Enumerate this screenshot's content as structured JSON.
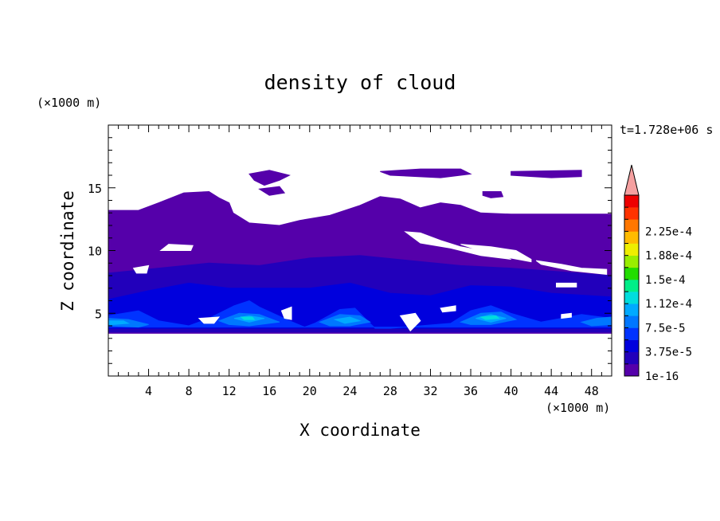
{
  "chart_data": {
    "type": "heatmap",
    "title": "density of cloud",
    "xlabel": "X coordinate",
    "ylabel": "Z coordinate",
    "x_unit": "(×1000 m)",
    "y_unit": "(×1000 m)",
    "time_label": "t=1.728e+06 s",
    "xlim": [
      0,
      50
    ],
    "ylim": [
      0,
      20
    ],
    "x_major_ticks": [
      4,
      8,
      12,
      16,
      20,
      24,
      28,
      32,
      36,
      40,
      44,
      48
    ],
    "y_major_ticks": [
      5,
      10,
      15
    ],
    "colorbar": {
      "labels": [
        "1e-16",
        "3.75e-5",
        "7.5e-5",
        "1.12e-4",
        "1.5e-4",
        "1.88e-4",
        "2.25e-4"
      ],
      "levels": [
        1e-16,
        1.875e-05,
        3.75e-05,
        5.625e-05,
        7.5e-05,
        9.375e-05,
        0.0001125,
        0.00013125,
        0.00015,
        0.00016875,
        0.0001875,
        0.00020625,
        0.000225,
        0.00024375
      ],
      "colors": [
        "#5500aa",
        "#2200bb",
        "#0000dd",
        "#0033ff",
        "#0077ff",
        "#00aaff",
        "#00dddd",
        "#00ee88",
        "#22dd00",
        "#99ee00",
        "#eeee00",
        "#ffbb00",
        "#ff7700",
        "#ff3300",
        "#ee0000"
      ],
      "overflow_color": "#f5a0a0"
    },
    "regions": [
      {
        "level": 0,
        "polygon": [
          [
            0,
            13.2
          ],
          [
            3,
            13.2
          ],
          [
            5,
            13.8
          ],
          [
            7.5,
            14.6
          ],
          [
            10,
            14.7
          ],
          [
            11,
            14.2
          ],
          [
            12,
            13.8
          ],
          [
            12.4,
            13.0
          ],
          [
            14,
            12.2
          ],
          [
            17,
            12.0
          ],
          [
            19,
            12.4
          ],
          [
            22,
            12.8
          ],
          [
            25,
            13.6
          ],
          [
            27,
            14.3
          ],
          [
            29,
            14.1
          ],
          [
            31,
            13.4
          ],
          [
            33,
            13.8
          ],
          [
            35,
            13.6
          ],
          [
            37,
            13.0
          ],
          [
            40,
            12.9
          ],
          [
            45,
            12.9
          ],
          [
            50,
            12.9
          ],
          [
            50,
            3.4
          ],
          [
            0,
            3.4
          ]
        ]
      },
      {
        "level": 0,
        "polygon": [
          [
            14,
            16.1
          ],
          [
            16,
            16.4
          ],
          [
            18,
            16.0
          ],
          [
            17,
            15.6
          ],
          [
            15.5,
            15.2
          ],
          [
            14.5,
            15.6
          ]
        ]
      },
      {
        "level": 0,
        "polygon": [
          [
            15,
            14.9
          ],
          [
            17,
            15.1
          ],
          [
            17.5,
            14.6
          ],
          [
            16,
            14.4
          ]
        ]
      },
      {
        "level": 0,
        "polygon": [
          [
            27,
            16.3
          ],
          [
            31,
            16.5
          ],
          [
            35,
            16.5
          ],
          [
            36,
            16.1
          ],
          [
            33,
            15.8
          ],
          [
            28,
            16.0
          ]
        ]
      },
      {
        "level": 0,
        "polygon": [
          [
            40,
            16.3
          ],
          [
            47,
            16.4
          ],
          [
            47,
            15.9
          ],
          [
            44,
            15.8
          ],
          [
            40,
            16.0
          ]
        ]
      },
      {
        "level": 0,
        "polygon": [
          [
            37.2,
            14.7
          ],
          [
            39.0,
            14.7
          ],
          [
            39.2,
            14.3
          ],
          [
            38,
            14.2
          ],
          [
            37.2,
            14.4
          ]
        ]
      },
      {
        "level": 1,
        "polygon": [
          [
            0,
            8.2
          ],
          [
            5,
            8.6
          ],
          [
            10,
            9.0
          ],
          [
            15,
            8.8
          ],
          [
            20,
            9.4
          ],
          [
            25,
            9.6
          ],
          [
            30,
            9.2
          ],
          [
            35,
            8.8
          ],
          [
            40,
            8.6
          ],
          [
            45,
            8.3
          ],
          [
            50,
            8.0
          ],
          [
            50,
            3.5
          ],
          [
            0,
            3.5
          ]
        ]
      },
      {
        "level": 2,
        "polygon": [
          [
            0,
            6.1
          ],
          [
            4,
            6.8
          ],
          [
            8,
            7.4
          ],
          [
            12,
            7.0
          ],
          [
            16,
            7.0
          ],
          [
            20,
            7.0
          ],
          [
            24,
            7.4
          ],
          [
            28,
            6.6
          ],
          [
            32,
            6.4
          ],
          [
            36,
            7.2
          ],
          [
            40,
            7.1
          ],
          [
            44,
            6.6
          ],
          [
            50,
            6.3
          ],
          [
            50,
            3.8
          ],
          [
            0,
            3.8
          ]
        ]
      },
      {
        "level": 3,
        "polygon": [
          [
            0,
            4.8
          ],
          [
            3,
            5.2
          ],
          [
            5,
            4.4
          ],
          [
            8,
            4.0
          ],
          [
            10,
            4.6
          ],
          [
            12.5,
            5.6
          ],
          [
            14,
            6.0
          ],
          [
            15,
            5.5
          ],
          [
            18,
            4.4
          ],
          [
            19.5,
            3.9
          ],
          [
            20.5,
            4.2
          ],
          [
            23,
            5.3
          ],
          [
            24.5,
            5.4
          ],
          [
            26,
            4.2
          ],
          [
            26.5,
            3.8
          ],
          [
            28,
            3.8
          ],
          [
            34,
            4.2
          ],
          [
            36,
            5.2
          ],
          [
            38,
            5.6
          ],
          [
            40,
            5.0
          ],
          [
            43,
            4.3
          ],
          [
            45,
            4.6
          ],
          [
            47,
            4.9
          ],
          [
            50,
            4.6
          ],
          [
            50,
            3.9
          ],
          [
            0,
            3.9
          ]
        ]
      },
      {
        "level": 4,
        "polygon": [
          [
            0,
            4.6
          ],
          [
            2,
            4.5
          ],
          [
            4,
            4.1
          ],
          [
            3,
            3.9
          ],
          [
            0,
            4.0
          ]
        ]
      },
      {
        "level": 4,
        "polygon": [
          [
            11,
            4.4
          ],
          [
            13,
            5.0
          ],
          [
            15,
            4.9
          ],
          [
            17,
            4.3
          ],
          [
            14,
            4.0
          ],
          [
            12,
            4.1
          ]
        ]
      },
      {
        "level": 4,
        "polygon": [
          [
            21,
            4.3
          ],
          [
            23,
            4.9
          ],
          [
            25,
            4.8
          ],
          [
            26,
            4.3
          ],
          [
            24,
            4.0
          ],
          [
            22,
            4.0
          ]
        ]
      },
      {
        "level": 4,
        "polygon": [
          [
            35,
            4.3
          ],
          [
            37,
            5.0
          ],
          [
            39,
            5.1
          ],
          [
            40.5,
            4.5
          ],
          [
            38,
            4.1
          ],
          [
            36,
            4.1
          ]
        ]
      },
      {
        "level": 4,
        "polygon": [
          [
            47,
            4.3
          ],
          [
            48.5,
            4.6
          ],
          [
            50,
            4.7
          ],
          [
            50,
            4.1
          ],
          [
            48,
            4.0
          ]
        ]
      },
      {
        "level": 5,
        "polygon": [
          [
            0,
            4.4
          ],
          [
            1.5,
            4.4
          ],
          [
            2,
            4.2
          ],
          [
            0.5,
            4.1
          ],
          [
            0,
            4.1
          ]
        ]
      },
      {
        "level": 5,
        "polygon": [
          [
            12.5,
            4.6
          ],
          [
            14,
            4.8
          ],
          [
            15.5,
            4.6
          ],
          [
            14,
            4.3
          ]
        ]
      },
      {
        "level": 5,
        "polygon": [
          [
            22.5,
            4.5
          ],
          [
            24,
            4.7
          ],
          [
            25,
            4.4
          ],
          [
            23.5,
            4.2
          ]
        ]
      },
      {
        "level": 5,
        "polygon": [
          [
            36.5,
            4.6
          ],
          [
            38,
            4.9
          ],
          [
            39.5,
            4.6
          ],
          [
            38,
            4.3
          ]
        ]
      },
      {
        "level": 6,
        "polygon": [
          [
            37,
            4.7
          ],
          [
            38.5,
            4.8
          ],
          [
            38.8,
            4.6
          ],
          [
            37.5,
            4.5
          ]
        ]
      },
      {
        "level": 6,
        "polygon": [
          [
            13.2,
            4.7
          ],
          [
            14.3,
            4.7
          ],
          [
            14.5,
            4.5
          ],
          [
            13.5,
            4.5
          ]
        ]
      },
      {
        "level": -1,
        "polygon": [
          [
            5.2,
            10.0
          ],
          [
            8.2,
            10.0
          ],
          [
            8.4,
            10.4
          ],
          [
            6,
            10.5
          ]
        ]
      },
      {
        "level": -1,
        "polygon": [
          [
            2.5,
            8.6
          ],
          [
            4,
            8.8
          ],
          [
            3.8,
            8.2
          ],
          [
            2.8,
            8.2
          ]
        ]
      },
      {
        "level": -1,
        "polygon": [
          [
            29.5,
            11.5
          ],
          [
            31,
            11.4
          ],
          [
            33,
            10.8
          ],
          [
            35,
            10.3
          ],
          [
            37,
            10.0
          ],
          [
            39,
            9.6
          ],
          [
            40,
            9.3
          ],
          [
            37,
            9.6
          ],
          [
            34,
            10.2
          ],
          [
            31,
            10.6
          ]
        ]
      },
      {
        "level": -1,
        "polygon": [
          [
            35,
            10.5
          ],
          [
            38,
            10.3
          ],
          [
            40.5,
            10.0
          ],
          [
            42,
            9.3
          ],
          [
            42,
            9.1
          ],
          [
            38,
            9.7
          ]
        ]
      },
      {
        "level": -1,
        "polygon": [
          [
            42.5,
            9.2
          ],
          [
            45,
            8.9
          ],
          [
            47,
            8.6
          ],
          [
            49.5,
            8.5
          ],
          [
            49.5,
            8.1
          ],
          [
            46,
            8.4
          ],
          [
            43,
            8.9
          ]
        ]
      },
      {
        "level": -1,
        "polygon": [
          [
            44.5,
            7.4
          ],
          [
            46.5,
            7.4
          ],
          [
            46.5,
            7.1
          ],
          [
            44.5,
            7.1
          ]
        ]
      },
      {
        "level": -1,
        "polygon": [
          [
            9,
            4.6
          ],
          [
            11,
            4.7
          ],
          [
            10.5,
            4.2
          ],
          [
            9.5,
            4.2
          ]
        ]
      },
      {
        "level": -1,
        "polygon": [
          [
            17.2,
            5.2
          ],
          [
            18.2,
            5.5
          ],
          [
            18.2,
            4.5
          ],
          [
            17.5,
            4.6
          ]
        ]
      },
      {
        "level": -1,
        "polygon": [
          [
            29,
            4.8
          ],
          [
            30.5,
            5.0
          ],
          [
            31,
            4.4
          ],
          [
            30,
            3.6
          ],
          [
            29.5,
            4.2
          ]
        ]
      },
      {
        "level": -1,
        "polygon": [
          [
            33,
            5.4
          ],
          [
            34.5,
            5.6
          ],
          [
            34.5,
            5.2
          ],
          [
            33.2,
            5.1
          ]
        ]
      },
      {
        "level": -1,
        "polygon": [
          [
            45,
            4.9
          ],
          [
            46,
            5.0
          ],
          [
            46,
            4.7
          ],
          [
            45,
            4.6
          ]
        ]
      }
    ]
  }
}
